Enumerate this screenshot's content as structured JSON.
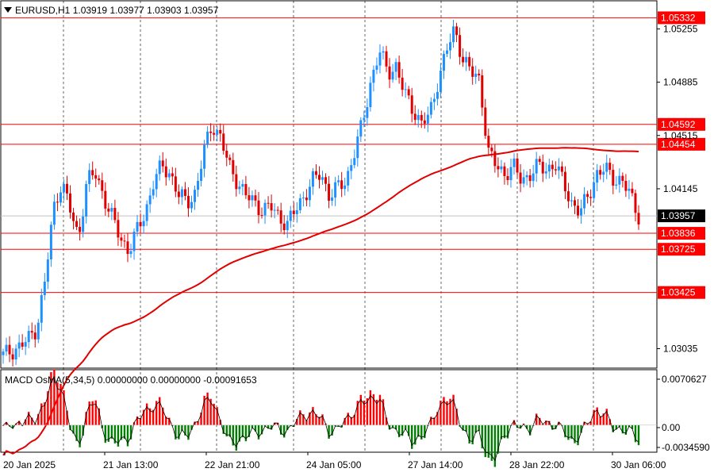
{
  "header": {
    "symbol": "EURUSD,H1",
    "open": "1.03919",
    "high": "1.03977",
    "low": "1.03903",
    "close": "1.03957"
  },
  "macd_header": {
    "name": "MACD",
    "params": "OsMA(5,34,5)",
    "v1": "0.00000000",
    "v2": "0.00000000",
    "v3": "-0.00091653"
  },
  "price_axis": {
    "ticks": [
      "1.05255",
      "1.04885",
      "1.04515",
      "1.04145",
      "1.03035"
    ],
    "current": "1.03957"
  },
  "macd_axis": {
    "ticks": [
      "0.0070627",
      "0.00",
      "-0.0034590"
    ]
  },
  "time_axis": {
    "labels": [
      "20 Jan 2025",
      "21 Jan 13:00",
      "22 Jan 21:00",
      "24 Jan 05:00",
      "27 Jan 14:00",
      "28 Jan 22:00",
      "30 Jan 06:00"
    ]
  },
  "levels": [
    "1.05332",
    "1.04592",
    "1.04454",
    "1.03836",
    "1.03725",
    "1.03425"
  ],
  "colors": {
    "bull": "#1e90ff",
    "bear": "#e00000",
    "level_line": "#ff0000",
    "ma": "#e00000",
    "macd_pos": "#ff0000",
    "macd_neg": "#008000"
  },
  "chart_data": [
    {
      "type": "candlestick",
      "title": "EURUSD,H1",
      "ylim": [
        1.029,
        1.0545
      ],
      "ohlc_close_path": [
        1.0299,
        1.0302,
        1.0305,
        1.031,
        1.0318,
        1.035,
        1.04,
        1.042,
        1.04,
        1.038,
        1.042,
        1.0425,
        1.041,
        1.0395,
        1.038,
        1.0372,
        1.0385,
        1.0398,
        1.042,
        1.043,
        1.0425,
        1.041,
        1.0405,
        1.0412,
        1.044,
        1.046,
        1.045,
        1.043,
        1.042,
        1.041,
        1.0405,
        1.04,
        1.0402,
        1.0395,
        1.039,
        1.04,
        1.041,
        1.042,
        1.0425,
        1.041,
        1.0415,
        1.042,
        1.044,
        1.046,
        1.049,
        1.051,
        1.0495,
        1.05,
        1.048,
        1.047,
        1.046,
        1.0465,
        1.049,
        1.051,
        1.0525,
        1.0505,
        1.0495,
        1.049,
        1.044,
        1.043,
        1.0425,
        1.043,
        1.042,
        1.0425,
        1.043,
        1.0428,
        1.0432,
        1.0418,
        1.0405,
        1.0398,
        1.041,
        1.0425,
        1.0428,
        1.0422,
        1.042,
        1.041,
        1.0396
      ]
    },
    {
      "type": "bar",
      "title": "OsMA(5,34,5)",
      "ylim": [
        -0.003459,
        0.0070627
      ]
    }
  ]
}
